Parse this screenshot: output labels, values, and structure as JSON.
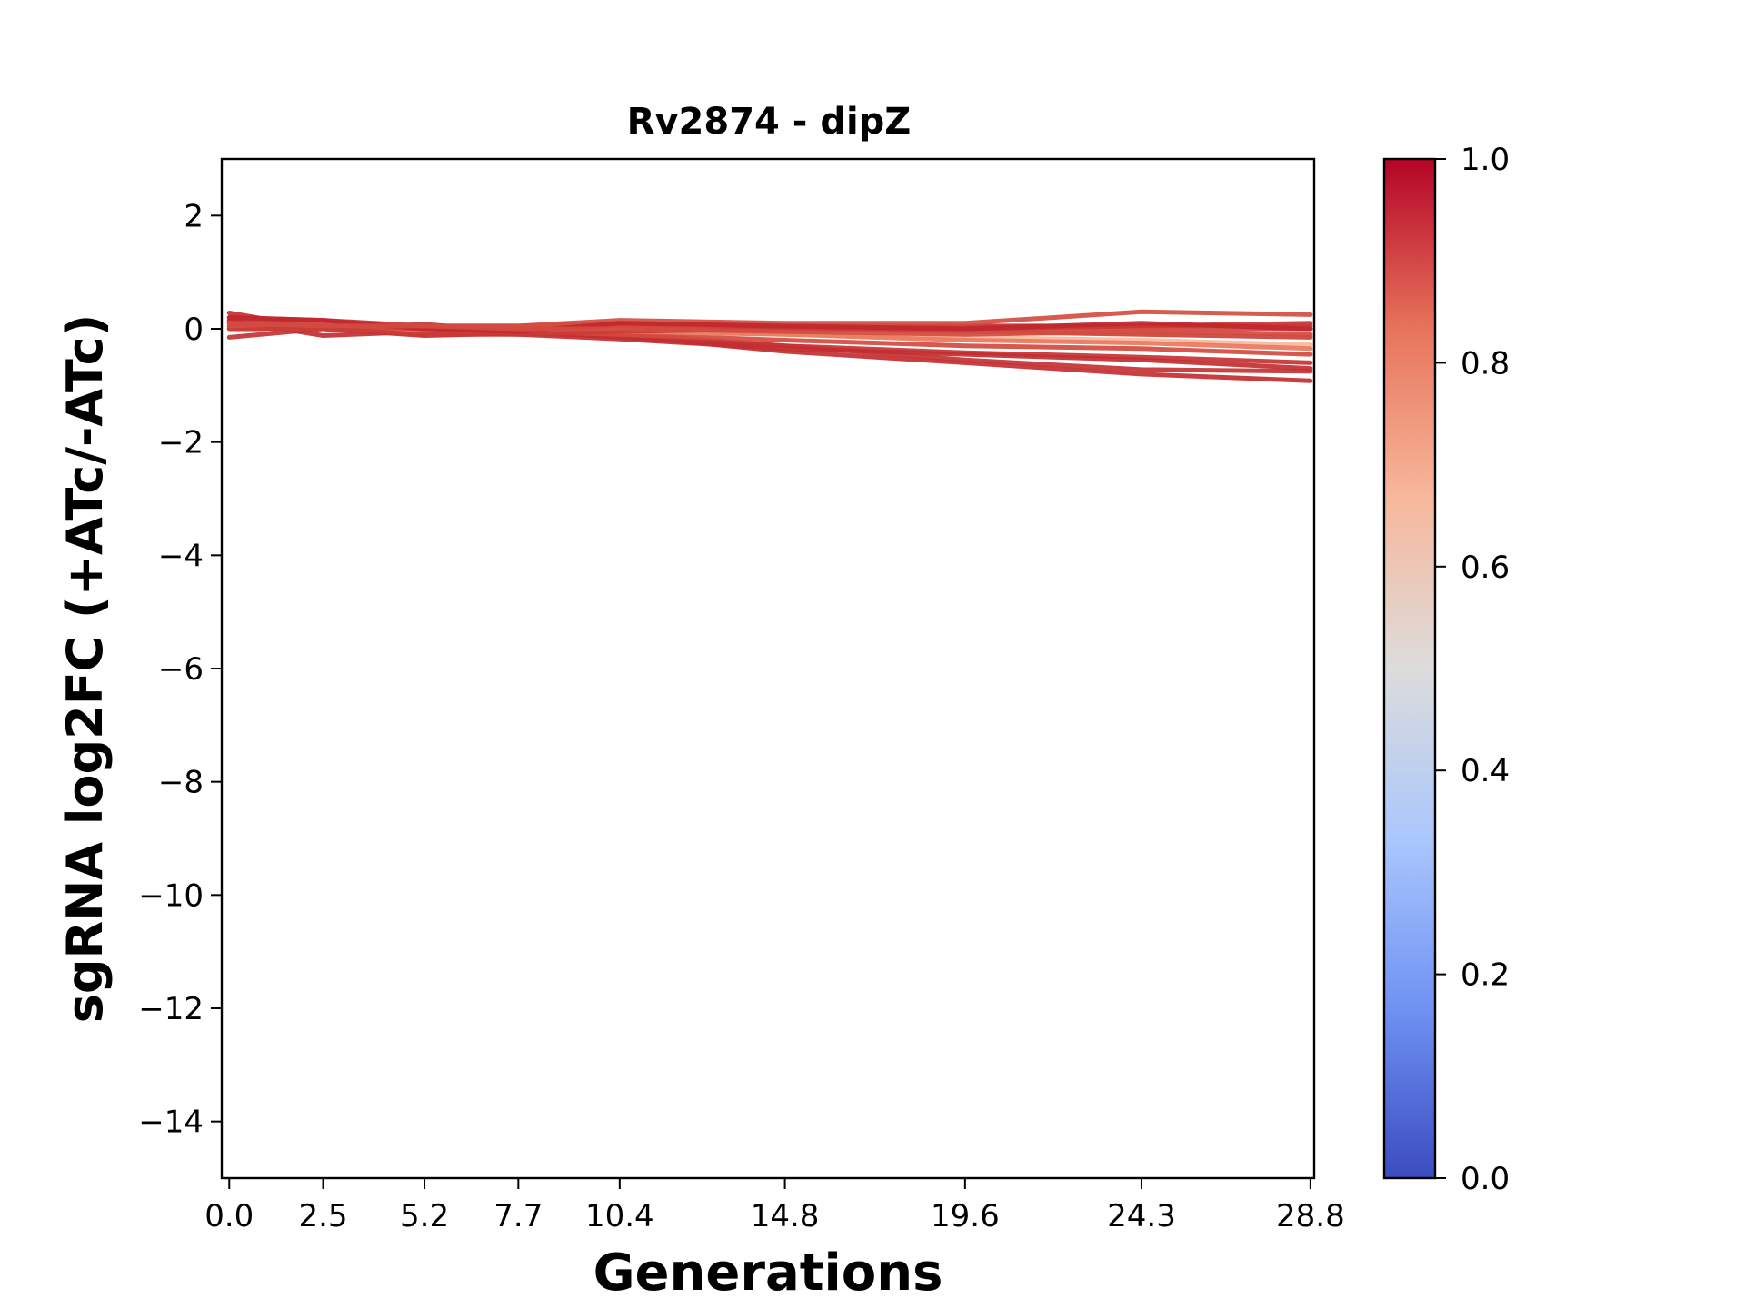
{
  "chart_data": {
    "type": "line",
    "title": "Rv2874 - dipZ",
    "xlabel": "Generations",
    "ylabel": "sgRNA log2FC (+ATc/-ATc)",
    "x": [
      0.0,
      2.5,
      5.2,
      7.7,
      10.4,
      14.8,
      19.6,
      24.3,
      28.8
    ],
    "x_tick_labels": [
      "0.0",
      "2.5",
      "5.2",
      "7.7",
      "10.4",
      "14.8",
      "19.6",
      "24.3",
      "28.8"
    ],
    "xlim": [
      -0.2,
      28.9
    ],
    "ylim": [
      -15,
      3
    ],
    "y_ticks": [
      2,
      0,
      -2,
      -4,
      -6,
      -8,
      -10,
      -12,
      -14
    ],
    "y_tick_labels": [
      "2",
      "0",
      "−2",
      "−4",
      "−6",
      "−8",
      "−10",
      "−12",
      "−14"
    ],
    "grid": false,
    "colormap": "coolwarm",
    "colorbar": {
      "range": [
        0.0,
        1.0
      ],
      "ticks": [
        0.0,
        0.2,
        0.4,
        0.6,
        0.8,
        1.0
      ],
      "tick_labels": [
        "0.0",
        "0.2",
        "0.4",
        "0.6",
        "0.8",
        "1.0"
      ],
      "stops": [
        "#3b4cc0",
        "#6f92f3",
        "#aac7fd",
        "#dddcdc",
        "#f7b89c",
        "#e7745b",
        "#b40426"
      ]
    },
    "series": [
      {
        "values": [
          0.28,
          0.0,
          -0.12,
          -0.08,
          -0.12,
          -0.4,
          -0.6,
          -0.8,
          -0.92
        ],
        "color": "#c32e31"
      },
      {
        "values": [
          0.2,
          0.15,
          0.05,
          0.0,
          -0.08,
          -0.3,
          -0.55,
          -0.72,
          -0.75
        ],
        "color": "#c53334"
      },
      {
        "values": [
          -0.15,
          0.0,
          0.08,
          -0.05,
          -0.15,
          -0.3,
          -0.42,
          -0.5,
          -0.6
        ],
        "color": "#c53334"
      },
      {
        "values": [
          0.15,
          -0.12,
          -0.05,
          -0.1,
          -0.18,
          -0.35,
          -0.45,
          -0.55,
          -0.7
        ],
        "color": "#c32e31"
      },
      {
        "values": [
          0.05,
          0.0,
          -0.05,
          -0.05,
          -0.1,
          -0.2,
          -0.3,
          -0.35,
          -0.45
        ],
        "color": "#d24b40"
      },
      {
        "values": [
          0.1,
          0.05,
          0.0,
          -0.02,
          0.0,
          -0.1,
          -0.15,
          -0.2,
          -0.28
        ],
        "color": "#f7b89c"
      },
      {
        "values": [
          0.0,
          0.0,
          -0.05,
          -0.05,
          -0.05,
          -0.1,
          -0.2,
          -0.25,
          -0.35
        ],
        "color": "#e9785d"
      },
      {
        "values": [
          0.05,
          0.05,
          0.0,
          0.0,
          0.05,
          0.0,
          -0.05,
          -0.1,
          -0.15
        ],
        "color": "#cd423b"
      },
      {
        "values": [
          0.15,
          0.1,
          0.05,
          0.05,
          0.1,
          0.05,
          0.05,
          0.05,
          0.05
        ],
        "color": "#c32e31"
      },
      {
        "values": [
          0.1,
          0.1,
          0.0,
          0.0,
          0.05,
          0.05,
          0.0,
          0.0,
          0.0
        ],
        "color": "#d0473d"
      },
      {
        "values": [
          0.0,
          0.0,
          -0.1,
          -0.1,
          -0.05,
          0.0,
          0.0,
          0.05,
          0.1
        ],
        "color": "#c83836"
      },
      {
        "values": [
          0.05,
          0.1,
          0.05,
          0.05,
          0.15,
          0.1,
          0.1,
          0.3,
          0.25
        ],
        "color": "#d44e41"
      },
      {
        "values": [
          0.2,
          0.15,
          0.0,
          -0.05,
          0.1,
          0.05,
          0.0,
          0.1,
          0.0
        ],
        "color": "#c0282f"
      },
      {
        "values": [
          0.1,
          0.05,
          0.05,
          0.0,
          0.0,
          -0.05,
          -0.1,
          -0.05,
          -0.1
        ],
        "color": "#d24b40"
      }
    ]
  }
}
